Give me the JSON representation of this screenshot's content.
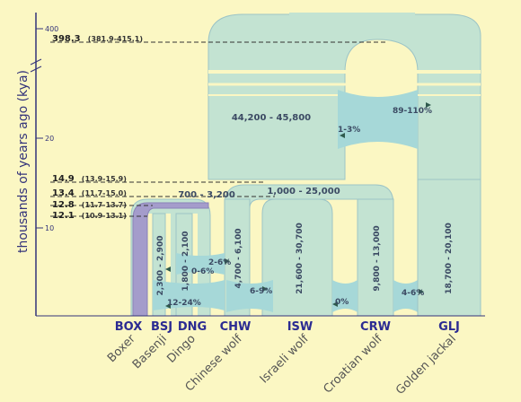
{
  "axis": {
    "label": "thousands of years ago (kya)",
    "ticks": [
      "400",
      "20",
      "10"
    ]
  },
  "timeline": [
    {
      "value": "398.3",
      "ci": "(381.9-415.1)"
    },
    {
      "value": "14.9",
      "ci": "(13.9-15.9)"
    },
    {
      "value": "13.4",
      "ci": "(11.7-15.0)"
    },
    {
      "value": "12.8",
      "ci": "(11.7-13.7)"
    },
    {
      "value": "12.1",
      "ci": "(10.9-13.1)"
    }
  ],
  "population_sizes": {
    "ancestral_jackal_wolf": "44,200 - 45,800",
    "ancestral_dog": "700 - 3,200",
    "ancestral_wolf": "1,000 - 25,000",
    "basenji": "2,300 - 2,900",
    "dingo": "1,800 - 2,100",
    "chinese_wolf": "4,700 - 6,100",
    "israeli_wolf": "21,600 - 30,700",
    "croatian_wolf": "9,800 - 13,000",
    "golden_jackal": "18,700 - 20,100"
  },
  "migration_rates": {
    "golden_jackal_to_ancestral": "89-110%",
    "ancestral_exchange": "1-3%",
    "dingo_chinese_upper": "2-6%",
    "dingo_chinese_lower": "0-6%",
    "basenji_chinese": "12-24%",
    "chinese_israeli": "6-9%",
    "israeli_croatian": "0%",
    "croatian_golden": "4-6%"
  },
  "lineages": [
    {
      "abbr": "BOX",
      "name": "Boxer"
    },
    {
      "abbr": "BSJ",
      "name": "Basenji"
    },
    {
      "abbr": "DNG",
      "name": "Dingo"
    },
    {
      "abbr": "CHW",
      "name": "Chinese wolf"
    },
    {
      "abbr": "ISW",
      "name": "Israeli wolf"
    },
    {
      "abbr": "CRW",
      "name": "Croatian wolf"
    },
    {
      "abbr": "GLJ",
      "name": "Golden jackal"
    }
  ],
  "colors": {
    "background": "#fbf7c3",
    "wolf_fill": "#c3e3d2",
    "wolf_stroke": "#9cc4c6",
    "dog_fill": "#a49ccb",
    "dog_stroke": "#8a82b8",
    "migration_fill": "#a6d8d8",
    "axis": "#33337a",
    "abbr_text": "#2b2b92"
  }
}
